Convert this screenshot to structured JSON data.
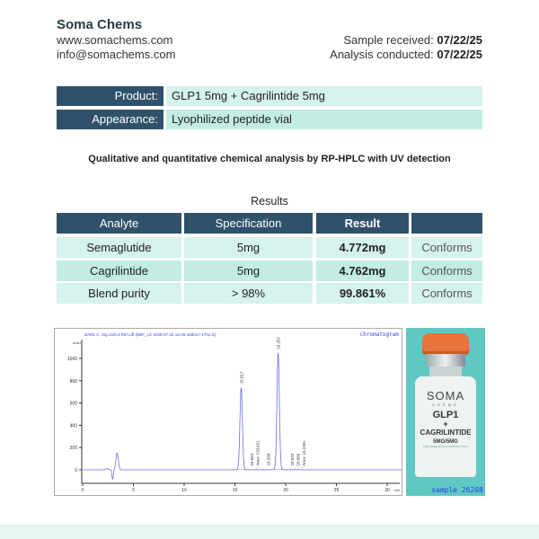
{
  "header": {
    "company": "Soma Chems",
    "website": "www.somachems.com",
    "email": "info@somachems.com",
    "received_label": "Sample received: ",
    "received_date": "07/22/25",
    "conducted_label": "Analysis conducted: ",
    "conducted_date": "07/22/25"
  },
  "info": [
    {
      "label": "Product:",
      "value": "GLP1 5mg + Cagrilintide 5mg"
    },
    {
      "label": "Appearance:",
      "value": "Lyophilized peptide vial"
    }
  ],
  "method": "Qualitative and quantitative chemical analysis by RP-HPLC with UV detection",
  "results": {
    "title": "Results",
    "headers": [
      "Analyte",
      "Specification",
      "Result",
      ""
    ],
    "rows": [
      [
        "Semaglutide",
        "5mg",
        "4.772mg",
        "Conforms"
      ],
      [
        "Cagrilintide",
        "5mg",
        "4.762mg",
        "Conforms"
      ],
      [
        "Blend purity",
        "> 98%",
        "99.861%",
        "Conforms"
      ]
    ]
  },
  "chromatogram": {
    "signal_title": "DAD1 C, Sig=220,4 Ref=off (DEF_LC 2025-07-22 13-45-190017-1701.D)",
    "corner_label": "chromatogram",
    "y_unit": "mAU",
    "x_unit": "min",
    "line_color": "#6b6bf0",
    "baseline_color": "#e060c0"
  },
  "chart_data": {
    "type": "line",
    "xlim": [
      0,
      31.5
    ],
    "ylim": [
      -130,
      1150
    ],
    "x_ticks": [
      0,
      5,
      10,
      15,
      20,
      25,
      30
    ],
    "y_ticks": [
      0,
      200,
      400,
      600,
      800,
      1000
    ],
    "peaks": [
      {
        "rt": 3.4,
        "height": 150,
        "label": ""
      },
      {
        "rt": 15.617,
        "height": 740,
        "label": "15.617"
      },
      {
        "rt": 16.653,
        "height": 3,
        "label": "16.653"
      },
      {
        "rt": 17.1,
        "height": 3,
        "label": "Area: 3.81421"
      },
      {
        "rt": 18.268,
        "height": 4,
        "label": "18.268"
      },
      {
        "rt": 19.257,
        "height": 1050,
        "label": "19.257"
      },
      {
        "rt": 20.633,
        "height": 4,
        "label": "20.633"
      },
      {
        "rt": 20.886,
        "height": 3,
        "label": "20.886"
      },
      {
        "rt": 21.2,
        "height": 3,
        "label": "Area: 10.1951"
      }
    ]
  },
  "vial": {
    "brand": "SOMA",
    "sub": "CHEMS",
    "line1": "GLP1",
    "plus": "+",
    "line2": "CAGRILINTIDE",
    "dose": "5MG/5MG",
    "note": "FOR RESEARCH PURPOSES ONLY",
    "sample": "sample 26208"
  }
}
